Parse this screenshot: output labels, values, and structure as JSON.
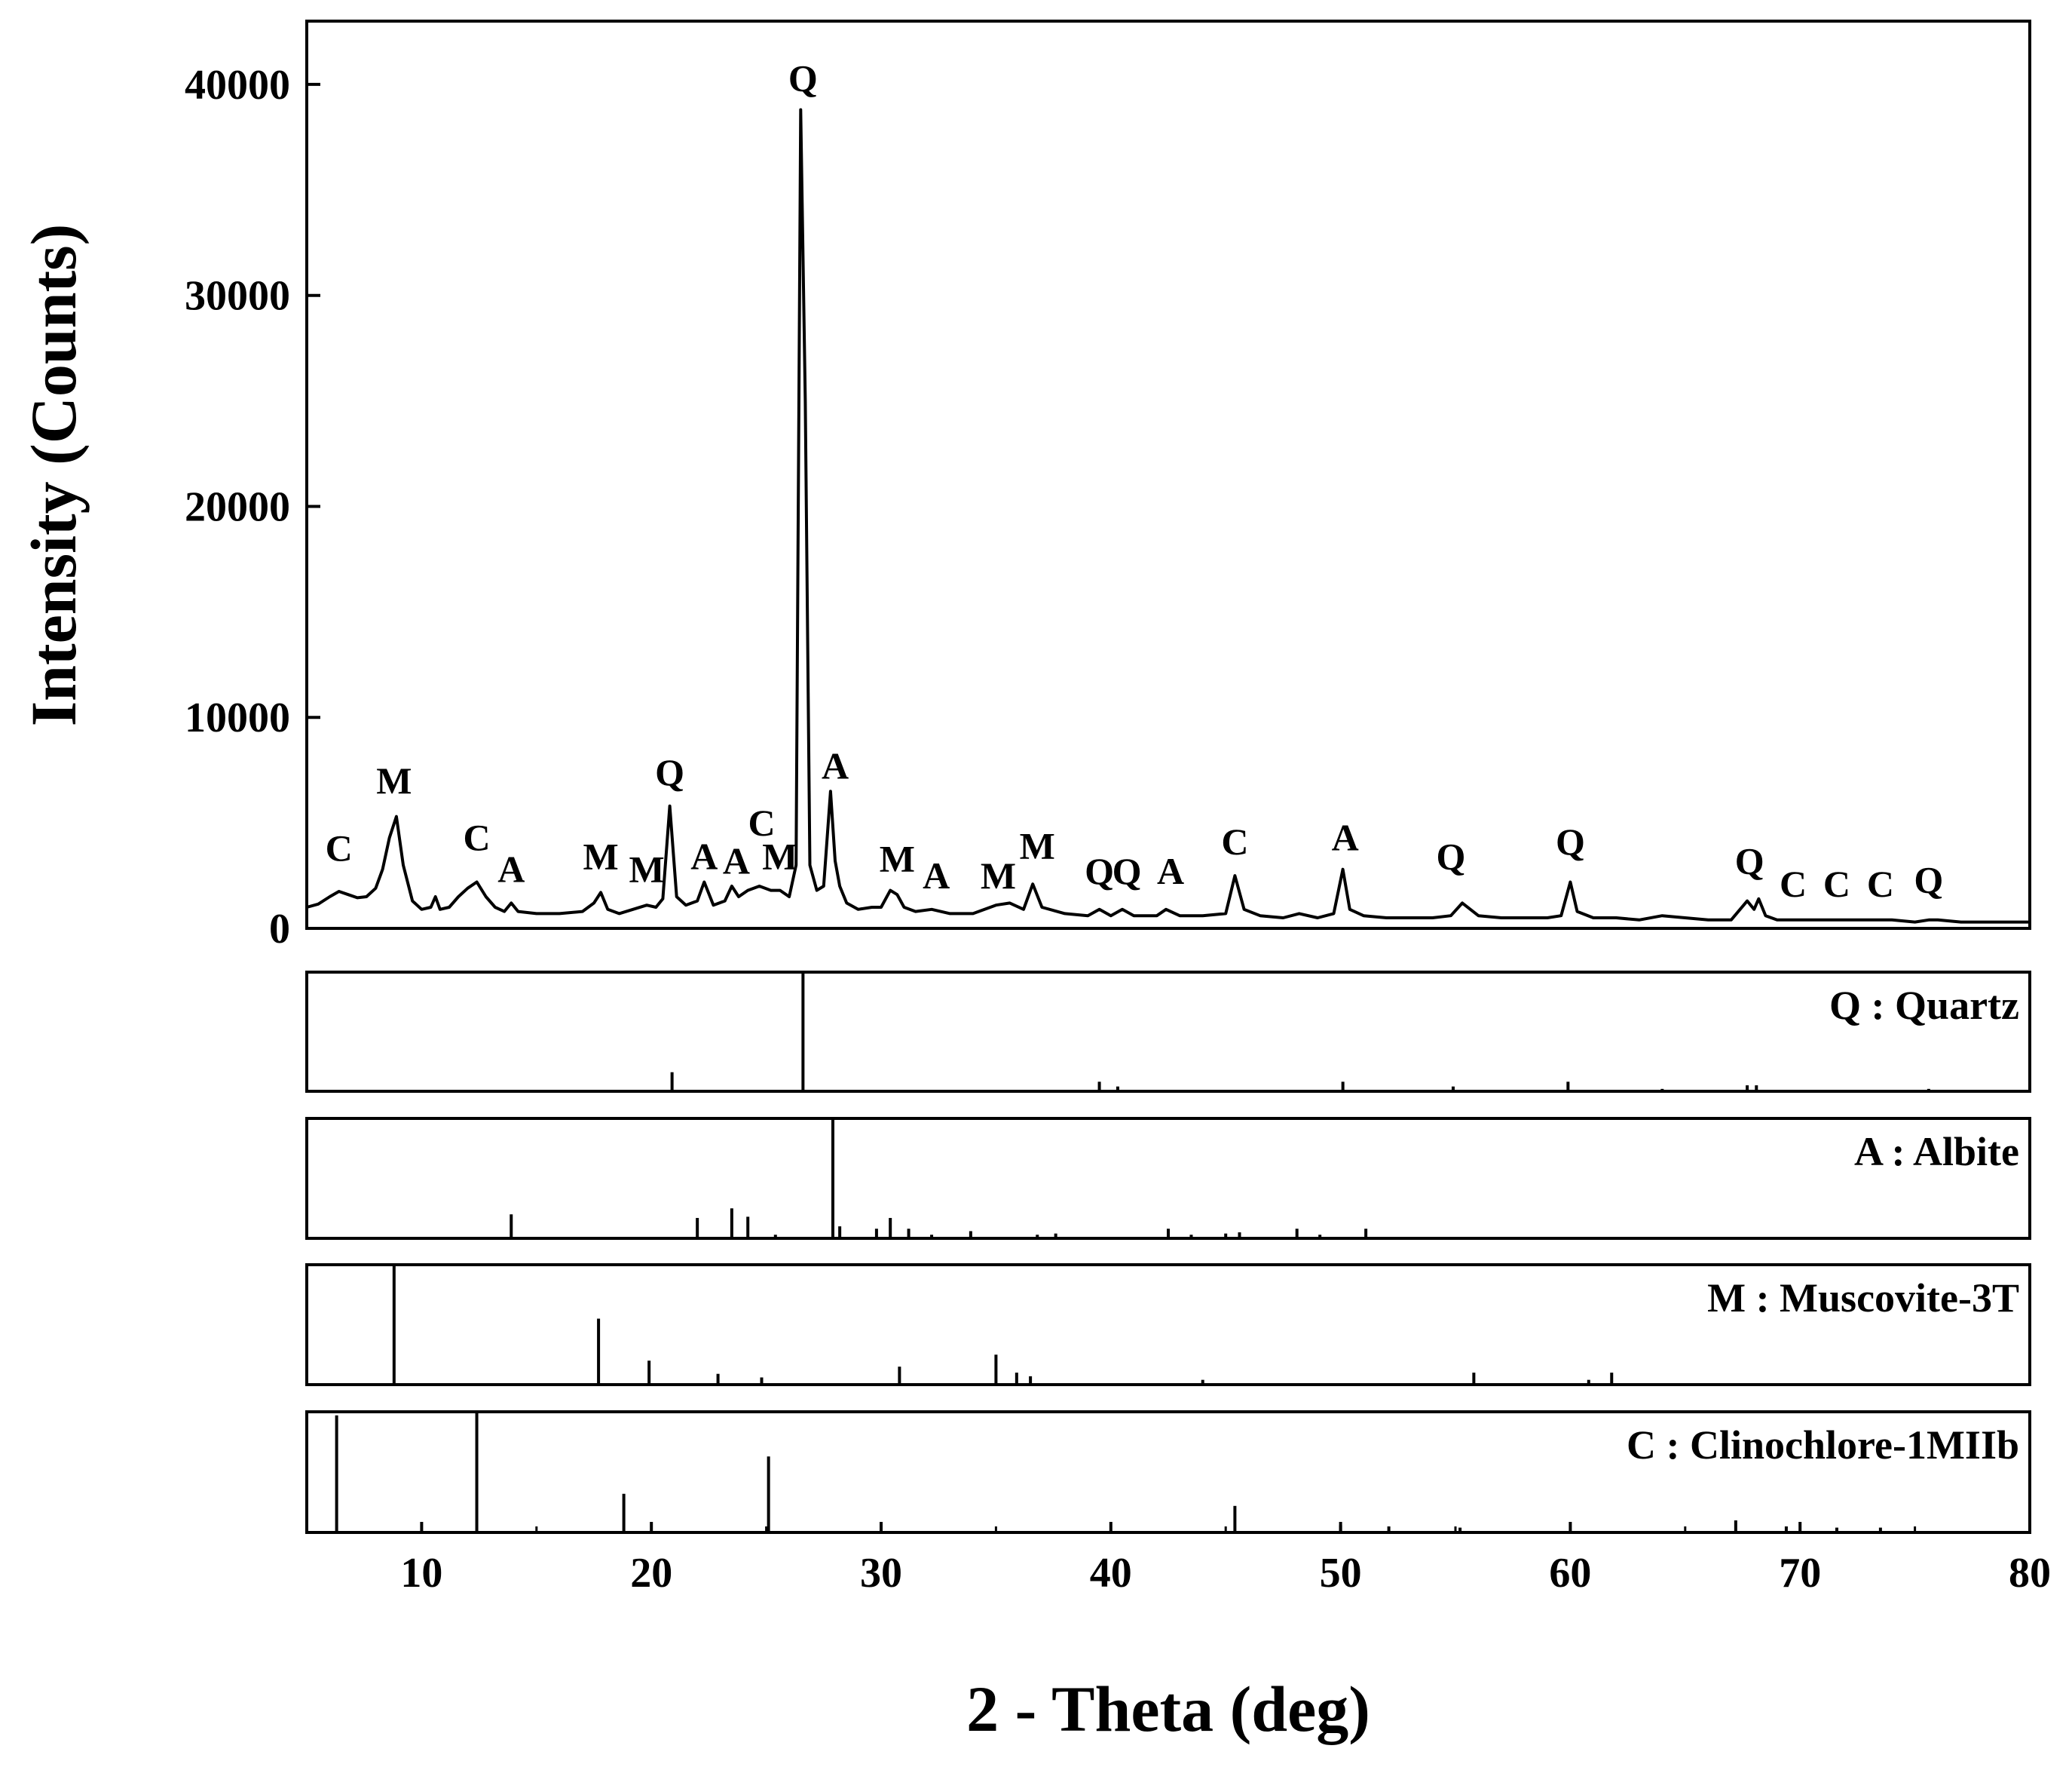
{
  "chart_data": {
    "type": "line",
    "xlabel": "2 - Theta (deg)",
    "ylabel": "Intensity (Counts)",
    "xlim": [
      5,
      80
    ],
    "ylim": [
      0,
      43000
    ],
    "x_ticks": [
      10,
      20,
      30,
      40,
      50,
      60,
      70,
      80
    ],
    "y_ticks": [
      0,
      10000,
      20000,
      30000,
      40000
    ],
    "grid": false,
    "background": "#ffffff",
    "line_color": "#000000",
    "series": [
      {
        "x": [
          5.0,
          5.5,
          6.0,
          6.4,
          6.8,
          7.2,
          7.6,
          8.0,
          8.3,
          8.6,
          8.9,
          9.2,
          9.6,
          10.0,
          10.4,
          10.6,
          10.8,
          11.2,
          11.6,
          12.0,
          12.4,
          12.8,
          13.2,
          13.6,
          13.9,
          14.2,
          15.0,
          16.0,
          17.0,
          17.5,
          17.8,
          18.1,
          18.6,
          19.2,
          19.8,
          20.2,
          20.5,
          20.8,
          21.1,
          21.5,
          22.0,
          22.3,
          22.7,
          23.2,
          23.5,
          23.8,
          24.2,
          24.7,
          25.2,
          25.6,
          26.0,
          26.3,
          26.5,
          26.7,
          26.9,
          27.2,
          27.5,
          27.8,
          28.0,
          28.2,
          28.5,
          29.0,
          29.6,
          30.0,
          30.4,
          30.7,
          31.0,
          31.5,
          32.2,
          33.0,
          34.0,
          35.0,
          35.6,
          36.2,
          36.6,
          37.0,
          38.0,
          39.0,
          39.5,
          40.0,
          40.5,
          41.0,
          42.0,
          42.4,
          43.0,
          44.0,
          45.0,
          45.4,
          45.8,
          46.5,
          47.5,
          48.2,
          49.0,
          49.7,
          50.1,
          50.4,
          51.0,
          52.0,
          53.0,
          54.0,
          54.8,
          55.3,
          56.0,
          57.0,
          58.0,
          59.0,
          59.6,
          60.0,
          60.3,
          61.0,
          62.0,
          63.0,
          64.0,
          65.0,
          66.0,
          67.0,
          67.7,
          68.0,
          68.2,
          68.5,
          69.0,
          70.0,
          71.0,
          72.0,
          73.0,
          74.0,
          75.0,
          75.6,
          76.0,
          77.0,
          78.0,
          79.0,
          80.0
        ],
        "y": [
          1000,
          1150,
          1500,
          1750,
          1600,
          1450,
          1500,
          1900,
          2800,
          4300,
          5300,
          3000,
          1300,
          900,
          1000,
          1500,
          900,
          1000,
          1500,
          1900,
          2200,
          1500,
          1000,
          800,
          1200,
          800,
          700,
          700,
          800,
          1200,
          1700,
          900,
          700,
          900,
          1100,
          1000,
          1400,
          5800,
          1500,
          1100,
          1300,
          2200,
          1100,
          1300,
          2000,
          1500,
          1800,
          2000,
          1800,
          1800,
          1500,
          3000,
          38800,
          25000,
          3000,
          1800,
          2000,
          6500,
          3200,
          2000,
          1200,
          900,
          1000,
          1000,
          1800,
          1600,
          1000,
          800,
          900,
          700,
          700,
          1100,
          1200,
          900,
          2100,
          1000,
          700,
          600,
          900,
          600,
          900,
          600,
          600,
          900,
          600,
          600,
          700,
          2500,
          900,
          600,
          500,
          700,
          500,
          700,
          2800,
          900,
          600,
          500,
          500,
          500,
          600,
          1200,
          600,
          500,
          500,
          500,
          600,
          2200,
          800,
          500,
          500,
          400,
          600,
          500,
          400,
          400,
          1300,
          900,
          1400,
          600,
          400,
          400,
          400,
          400,
          400,
          400,
          300,
          400,
          400,
          300,
          300,
          300,
          300
        ]
      }
    ],
    "peak_labels": [
      {
        "text": "C",
        "x": 6.4,
        "y": 3200
      },
      {
        "text": "M",
        "x": 8.8,
        "y": 6400
      },
      {
        "text": "C",
        "x": 12.4,
        "y": 3700
      },
      {
        "text": "A",
        "x": 13.9,
        "y": 2200
      },
      {
        "text": "M",
        "x": 17.8,
        "y": 2800
      },
      {
        "text": "M",
        "x": 19.8,
        "y": 2200
      },
      {
        "text": "Q",
        "x": 20.8,
        "y": 6800
      },
      {
        "text": "A",
        "x": 22.3,
        "y": 2800
      },
      {
        "text": "A",
        "x": 23.7,
        "y": 2600
      },
      {
        "text": "C",
        "x": 24.8,
        "y": 4400
      },
      {
        "text": "M",
        "x": 25.6,
        "y": 2800
      },
      {
        "text": "Q",
        "x": 26.6,
        "y": 39700
      },
      {
        "text": "A",
        "x": 28.0,
        "y": 7100
      },
      {
        "text": "M",
        "x": 30.7,
        "y": 2700
      },
      {
        "text": "A",
        "x": 32.4,
        "y": 1900
      },
      {
        "text": "M",
        "x": 35.1,
        "y": 1900
      },
      {
        "text": "M",
        "x": 36.8,
        "y": 3300
      },
      {
        "text": "Q",
        "x": 39.5,
        "y": 2100
      },
      {
        "text": "Q",
        "x": 40.7,
        "y": 2100
      },
      {
        "text": "A",
        "x": 42.6,
        "y": 2100
      },
      {
        "text": "C",
        "x": 45.4,
        "y": 3500
      },
      {
        "text": "A",
        "x": 50.2,
        "y": 3700
      },
      {
        "text": "Q",
        "x": 54.8,
        "y": 2800
      },
      {
        "text": "Q",
        "x": 60.0,
        "y": 3500
      },
      {
        "text": "Q",
        "x": 67.8,
        "y": 2600
      },
      {
        "text": "C",
        "x": 69.7,
        "y": 1500
      },
      {
        "text": "C",
        "x": 71.6,
        "y": 1500
      },
      {
        "text": "C",
        "x": 73.5,
        "y": 1500
      },
      {
        "text": "Q",
        "x": 75.6,
        "y": 1700
      }
    ],
    "reference_panels": [
      {
        "name": "Q : Quartz",
        "sticks": [
          {
            "x": 20.9,
            "rel": 0.16
          },
          {
            "x": 26.6,
            "rel": 1.0
          },
          {
            "x": 39.5,
            "rel": 0.08
          },
          {
            "x": 40.3,
            "rel": 0.04
          },
          {
            "x": 50.1,
            "rel": 0.08
          },
          {
            "x": 54.9,
            "rel": 0.04
          },
          {
            "x": 59.9,
            "rel": 0.08
          },
          {
            "x": 64.0,
            "rel": 0.02
          },
          {
            "x": 67.7,
            "rel": 0.05
          },
          {
            "x": 68.1,
            "rel": 0.05
          },
          {
            "x": 75.6,
            "rel": 0.02
          }
        ]
      },
      {
        "name": "A : Albite",
        "sticks": [
          {
            "x": 13.9,
            "rel": 0.2
          },
          {
            "x": 22.0,
            "rel": 0.17
          },
          {
            "x": 23.5,
            "rel": 0.25
          },
          {
            "x": 24.2,
            "rel": 0.18
          },
          {
            "x": 25.4,
            "rel": 0.03
          },
          {
            "x": 27.9,
            "rel": 1.0
          },
          {
            "x": 28.2,
            "rel": 0.1
          },
          {
            "x": 29.8,
            "rel": 0.08
          },
          {
            "x": 30.4,
            "rel": 0.17
          },
          {
            "x": 31.2,
            "rel": 0.08
          },
          {
            "x": 32.2,
            "rel": 0.03
          },
          {
            "x": 33.9,
            "rel": 0.06
          },
          {
            "x": 36.8,
            "rel": 0.03
          },
          {
            "x": 37.6,
            "rel": 0.04
          },
          {
            "x": 42.5,
            "rel": 0.08
          },
          {
            "x": 43.5,
            "rel": 0.03
          },
          {
            "x": 45.0,
            "rel": 0.04
          },
          {
            "x": 45.6,
            "rel": 0.05
          },
          {
            "x": 48.1,
            "rel": 0.08
          },
          {
            "x": 49.1,
            "rel": 0.03
          },
          {
            "x": 51.1,
            "rel": 0.08
          }
        ]
      },
      {
        "name": "M : Muscovite-3T",
        "sticks": [
          {
            "x": 8.8,
            "rel": 1.0
          },
          {
            "x": 17.7,
            "rel": 0.55
          },
          {
            "x": 19.9,
            "rel": 0.2
          },
          {
            "x": 22.9,
            "rel": 0.09
          },
          {
            "x": 24.8,
            "rel": 0.06
          },
          {
            "x": 30.8,
            "rel": 0.15
          },
          {
            "x": 35.0,
            "rel": 0.25
          },
          {
            "x": 35.9,
            "rel": 0.1
          },
          {
            "x": 36.5,
            "rel": 0.07
          },
          {
            "x": 44.0,
            "rel": 0.04
          },
          {
            "x": 55.8,
            "rel": 0.1
          },
          {
            "x": 60.8,
            "rel": 0.04
          },
          {
            "x": 61.8,
            "rel": 0.1
          }
        ]
      },
      {
        "name": "C : Clinochlore-1MIIb",
        "sticks": [
          {
            "x": 6.3,
            "rel": 0.97
          },
          {
            "x": 12.4,
            "rel": 1.0
          },
          {
            "x": 18.8,
            "rel": 0.32
          },
          {
            "x": 25.1,
            "rel": 0.63
          },
          {
            "x": 45.4,
            "rel": 0.22
          },
          {
            "x": 50.0,
            "rel": 0.06
          },
          {
            "x": 52.1,
            "rel": 0.05
          },
          {
            "x": 55.2,
            "rel": 0.04
          },
          {
            "x": 67.2,
            "rel": 0.1
          },
          {
            "x": 69.4,
            "rel": 0.05
          },
          {
            "x": 71.6,
            "rel": 0.04
          },
          {
            "x": 73.5,
            "rel": 0.04
          }
        ]
      }
    ]
  }
}
